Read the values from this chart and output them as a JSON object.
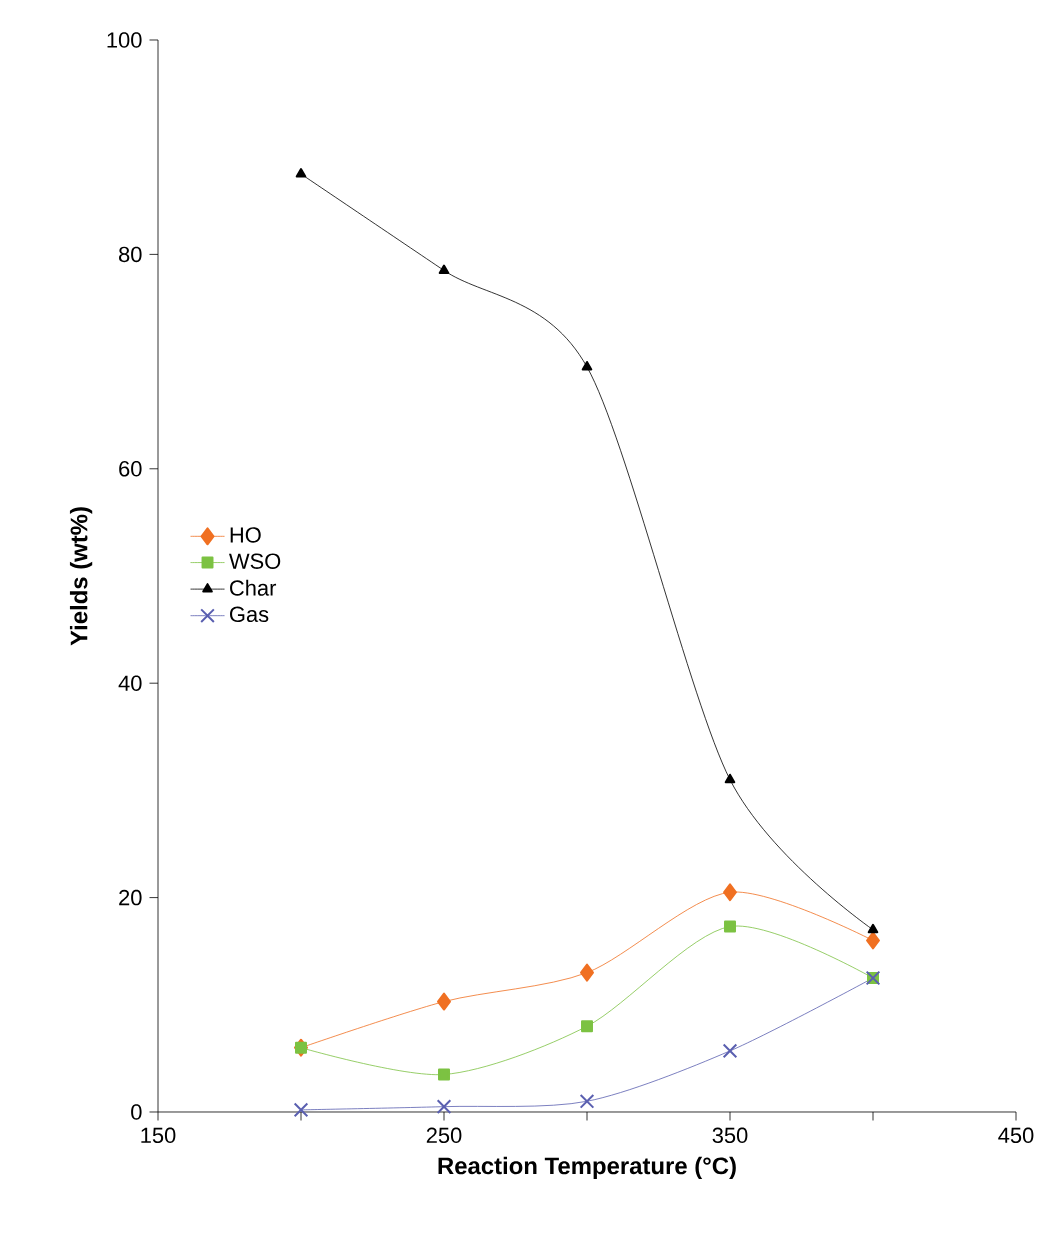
{
  "chart_data": {
    "type": "line",
    "xlabel": "Reaction Temperature (°C)",
    "ylabel": "Yields (wt%)",
    "x": [
      200,
      250,
      300,
      350,
      400
    ],
    "series": [
      {
        "name": "HO",
        "color": "#f07022",
        "marker": "diamond",
        "values": [
          6,
          10.3,
          13,
          20.5,
          16
        ]
      },
      {
        "name": "WSO",
        "color": "#7cc242",
        "marker": "square",
        "values": [
          6,
          3.5,
          8,
          17.3,
          12.5
        ]
      },
      {
        "name": "Char",
        "color": "#000000",
        "marker": "triangle",
        "values": [
          87.5,
          78.5,
          69.5,
          31,
          17
        ]
      },
      {
        "name": "Gas",
        "color": "#5a5fb0",
        "marker": "cross",
        "values": [
          0.2,
          0.5,
          1,
          5.7,
          12.5
        ]
      }
    ],
    "xlim": [
      150,
      450
    ],
    "ylim": [
      0,
      100
    ],
    "xticks": [
      150,
      {
        "value": 200,
        "label": null
      },
      250,
      {
        "value": 300,
        "label": null
      },
      350,
      {
        "value": 400,
        "label": null
      },
      450
    ],
    "yticks": [
      0,
      20,
      40,
      60,
      80,
      100
    ],
    "legend": "left",
    "grid": false
  }
}
